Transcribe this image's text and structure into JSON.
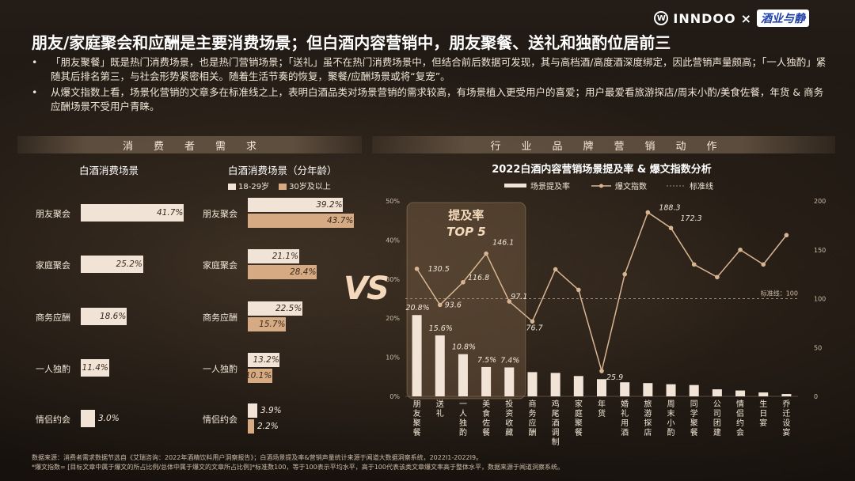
{
  "title": "朋友/家庭聚会和应酬是主要消费场景；但白酒内容营销中，朋友聚餐、送礼和独酌位居前三",
  "brand": {
    "logo_text": "INNDOO",
    "cross": "×",
    "partner": "酒业与静"
  },
  "bullets": [
    "「朋友聚餐」既是热门消费场景，也是热门营销场景；「送礼」虽不在热门消费场景中，但结合前后数据可发现，其与高档酒/高度酒深度绑定，因此营销声量颇高；「一人独酌」紧随其后排名第三，与社会形势紧密相关。随着生活节奏的恢复，聚餐/应酬场景或将“复宠”。",
    "从爆文指数上看，场景化营销的文章多在标准线之上，表明白酒品类对场景营销的需求较高，有场景植入更受用户的喜爱；用户最爱看旅游探店/周末小酌/美食佐餐，年货 & 商务应酬场景不受用户青睐。"
  ],
  "left_panel": {
    "header": "消　　费　　者　　需　　求",
    "chart1_title": "白酒消费场景",
    "chart2_title": "白酒消费场景（分年龄）",
    "legend": [
      "18-29岁",
      "30岁及以上"
    ]
  },
  "right_panel": {
    "header": "行　　业　　品　　牌　　营　　销　　动　　作",
    "chart_title": "2022白酒内容营销场景提及率 & 爆文指数分析",
    "legend": [
      "场景提及率",
      "爆文指数",
      "标准线"
    ],
    "top5_label1": "提及率",
    "top5_label2": "TOP 5",
    "standard_label": "标准线：100"
  },
  "vs_text": "VS",
  "source": [
    "数据来源：消费者需求数据节选自《艾瑞咨询：2022年酒精饮料用户洞察报告》；白酒场景提及率&营销声量统计来源于闻道大数据洞察系统，2022I1-2022I9。",
    "*爆文指数= [目标文章中属于爆文的所占比例/总体中属于爆文的文章所占比例]*标准数100，等于100表示平均水平，高于100代表该类文章爆文率高于整体水平，数据来源于闻道洞察系统。"
  ],
  "colors": {
    "bar_light": "#f1e3d6",
    "bar_dark": "#d6ab84",
    "line": "#d8b592"
  },
  "chart_data": [
    {
      "type": "bar",
      "title": "白酒消费场景",
      "categories": [
        "朋友聚会",
        "家庭聚会",
        "商务应酬",
        "一人独酌",
        "情侣约会"
      ],
      "values": [
        41.7,
        25.2,
        18.6,
        11.4,
        3.0
      ],
      "value_labels": [
        "41.7%",
        "25.2%",
        "18.6%",
        "11.4%",
        "3.0%"
      ]
    },
    {
      "type": "bar",
      "title": "白酒消费场景（分年龄）",
      "categories": [
        "朋友聚会",
        "家庭聚会",
        "商务应酬",
        "一人独酌",
        "情侣约会"
      ],
      "series": [
        {
          "name": "18-29岁",
          "values": [
            39.2,
            21.1,
            22.5,
            13.2,
            3.9
          ],
          "labels": [
            "39.2%",
            "21.1%",
            "22.5%",
            "13.2%",
            "3.9%"
          ]
        },
        {
          "name": "30岁及以上",
          "values": [
            43.7,
            28.4,
            15.7,
            10.1,
            2.2
          ],
          "labels": [
            "43.7%",
            "28.4%",
            "15.7%",
            "10.1%",
            "2.2%"
          ]
        }
      ]
    },
    {
      "type": "bar+line",
      "title": "2022白酒内容营销场景提及率 & 爆文指数分析",
      "categories": [
        "朋友聚餐",
        "送礼",
        "一人独酌",
        "美食佐餐",
        "投资收藏",
        "商务应酬",
        "鸡尾酒调制",
        "家庭聚餐",
        "年货",
        "婚礼用酒",
        "旅游探店",
        "周末小酌",
        "同学聚餐",
        "公司团建",
        "情侣约会",
        "生日宴",
        "乔迁设宴"
      ],
      "series": [
        {
          "name": "场景提及率",
          "axis": "left",
          "values": [
            20.8,
            15.6,
            10.8,
            7.5,
            7.4,
            6.2,
            6.0,
            5.2,
            4.4,
            3.6,
            3.4,
            3.1,
            2.9,
            1.8,
            1.5,
            1.0,
            0.6
          ],
          "labels": [
            "20.8%",
            "15.6%",
            "10.8%",
            "7.5%",
            "7.4%",
            "",
            "",
            "",
            "",
            "",
            "",
            "",
            "",
            "",
            "",
            "",
            ""
          ]
        },
        {
          "name": "爆文指数",
          "axis": "right",
          "values": [
            130.5,
            93.6,
            116.8,
            146.1,
            97.1,
            76.7,
            130,
            109,
            25.9,
            125,
            188.3,
            172.3,
            135,
            122,
            150,
            135,
            165
          ],
          "labels": [
            "130.5",
            "93.6",
            "116.8",
            "146.1",
            "97.1",
            "76.7",
            "",
            "",
            "25.9",
            "",
            "188.3",
            "172.3",
            "",
            "",
            "",
            "",
            ""
          ]
        }
      ],
      "standard_line": 100,
      "y_left": {
        "min": 0,
        "max": 50,
        "ticks": [
          "0%",
          "10%",
          "20%",
          "30%",
          "40%",
          "50%"
        ]
      },
      "y_right": {
        "min": 0,
        "max": 200,
        "ticks": [
          "0",
          "50",
          "100",
          "150",
          "200"
        ]
      }
    }
  ]
}
